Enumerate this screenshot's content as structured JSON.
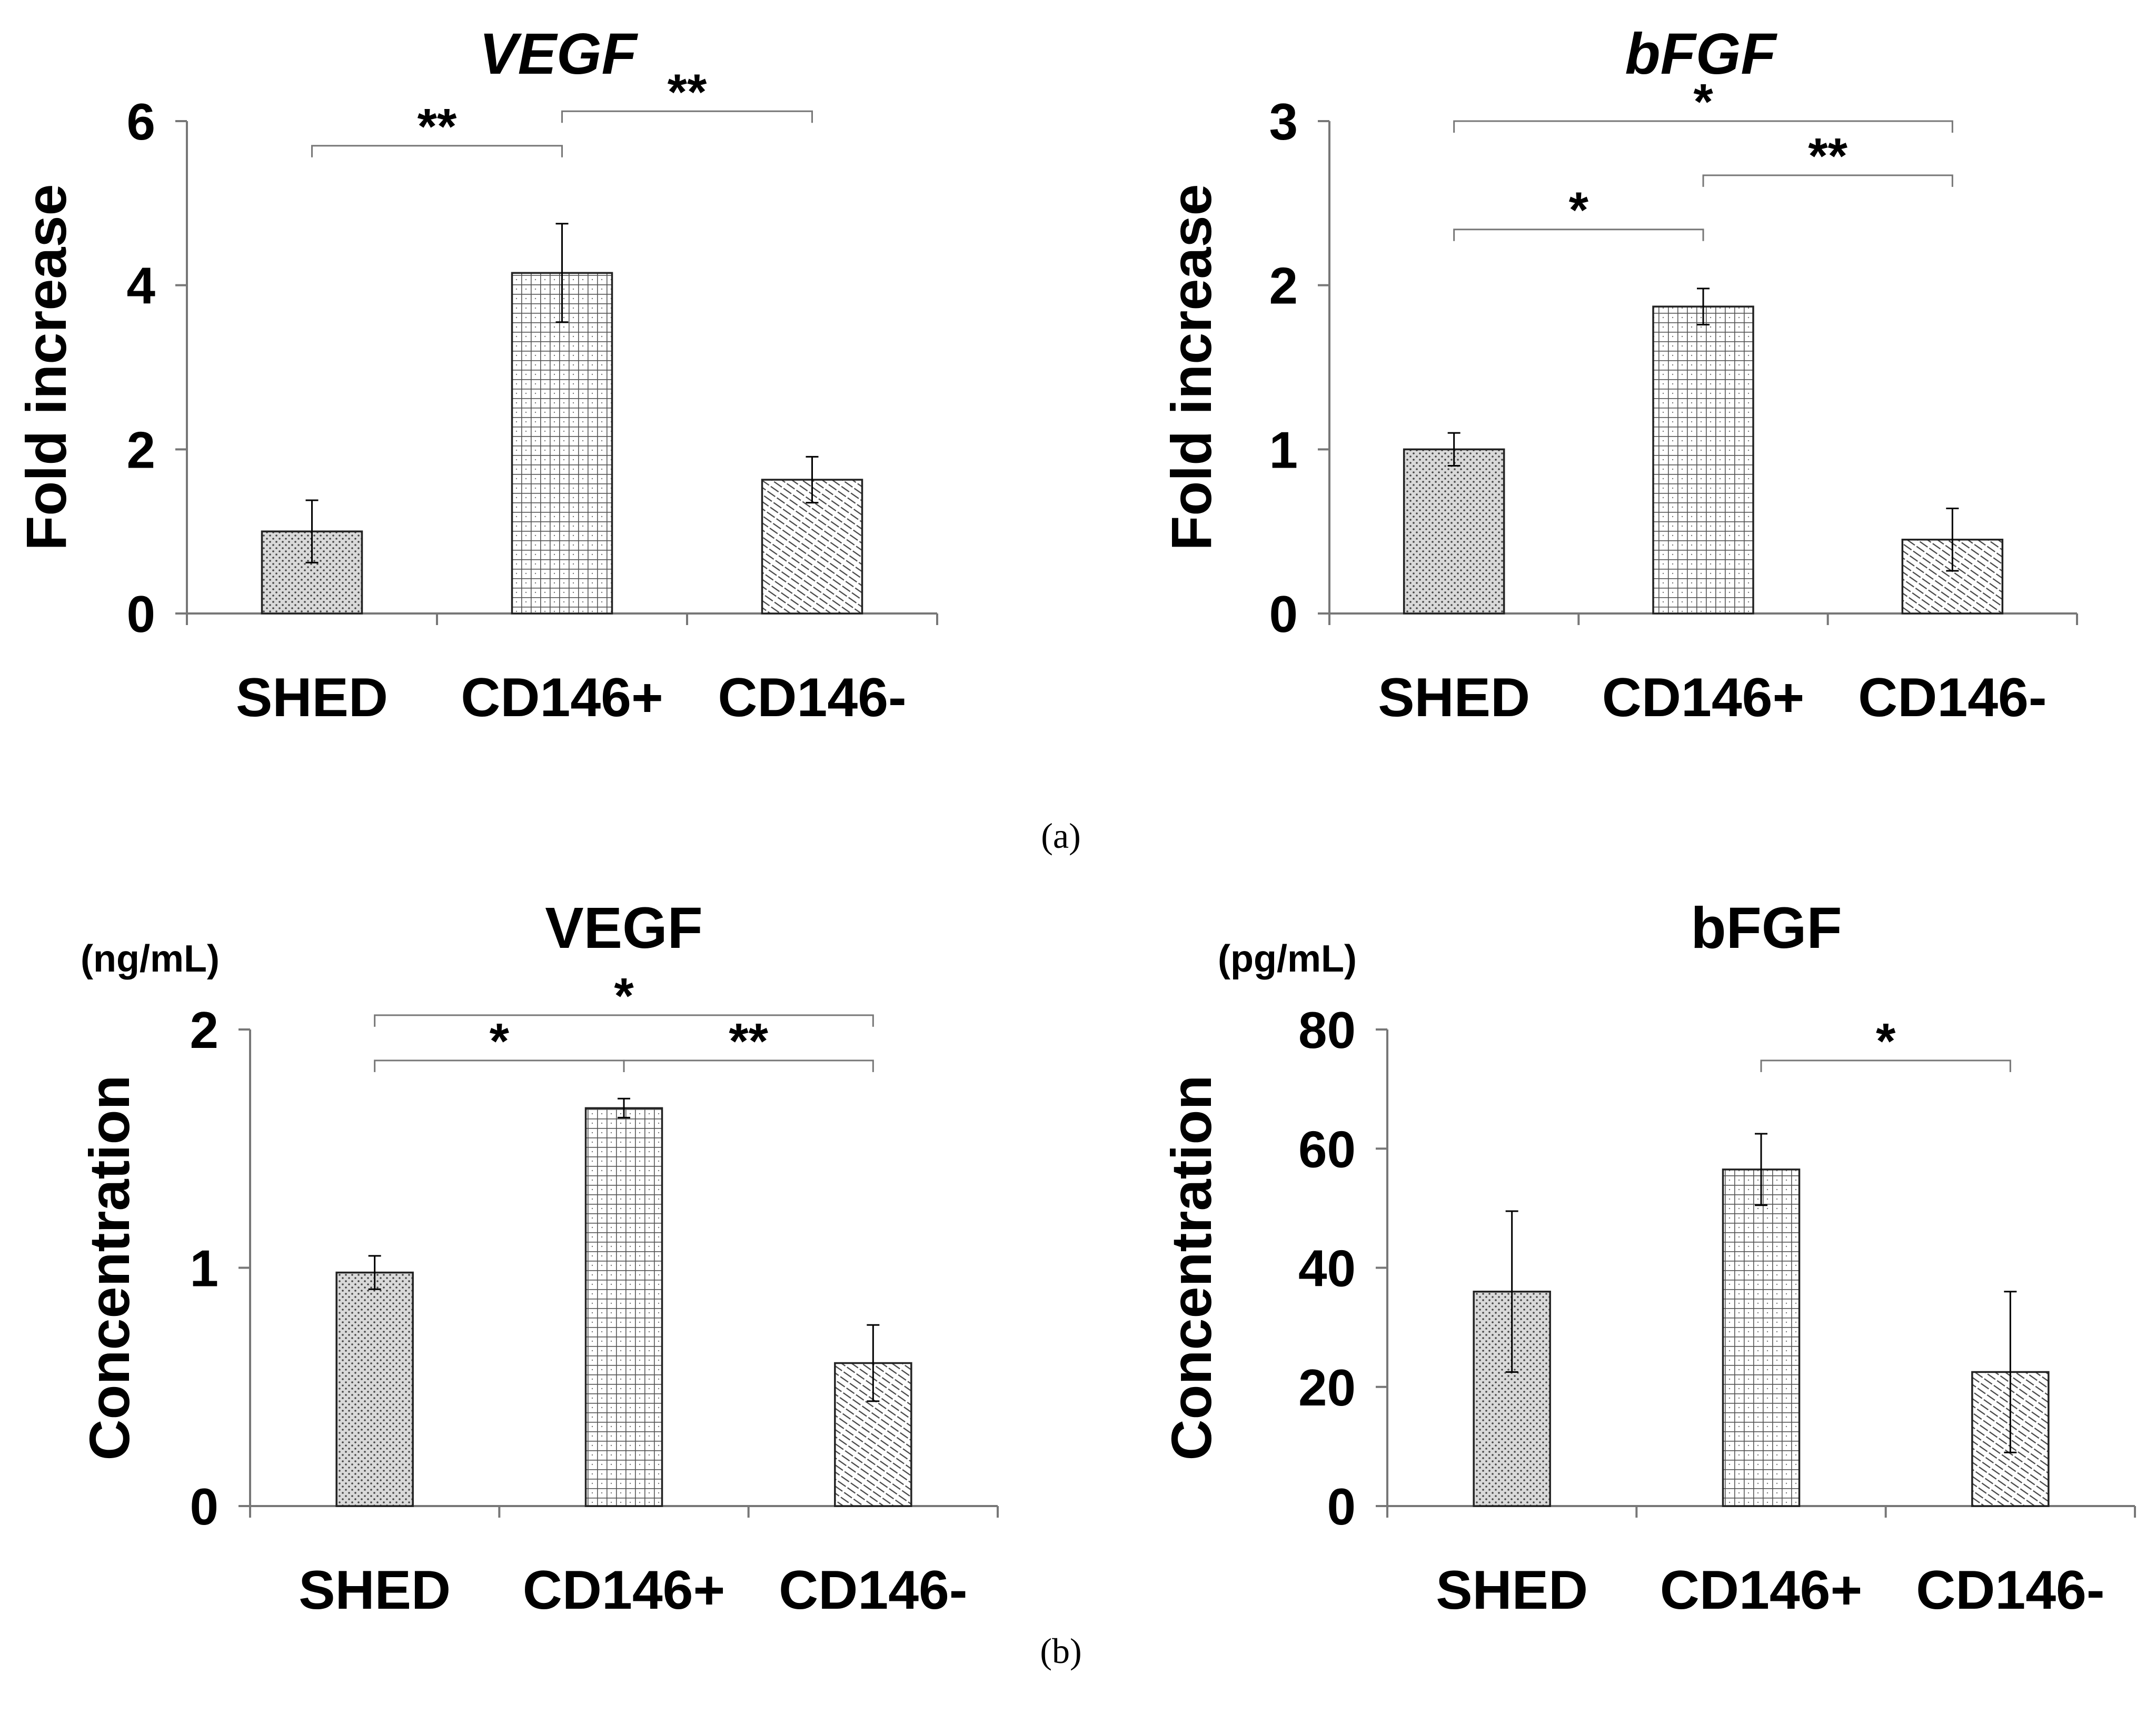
{
  "panel_labels": [
    "(a)",
    "(b)"
  ],
  "patterns": [
    "dots",
    "grid",
    "diag"
  ],
  "chart_data": [
    {
      "type": "bar",
      "title": "VEGF",
      "title_italic": true,
      "ylabel": "Fold increase",
      "unit": "",
      "xlabel": "",
      "categories": [
        "SHED",
        "CD146+",
        "CD146-"
      ],
      "values": [
        1.0,
        4.15,
        1.63
      ],
      "errors": [
        0.38,
        0.6,
        0.28
      ],
      "ylim": [
        0,
        6
      ],
      "yticks": [
        0,
        2,
        4,
        6
      ],
      "significance": [
        {
          "from": 0,
          "to": 1,
          "level": 0.95,
          "label": "**"
        },
        {
          "from": 1,
          "to": 2,
          "level": 1.02,
          "label": "**"
        }
      ]
    },
    {
      "type": "bar",
      "title": "bFGF",
      "title_italic": true,
      "ylabel": "Fold increase",
      "unit": "",
      "xlabel": "",
      "categories": [
        "SHED",
        "CD146+",
        "CD146-"
      ],
      "values": [
        1.0,
        1.87,
        0.45
      ],
      "errors": [
        0.1,
        0.11,
        0.19
      ],
      "ylim": [
        0,
        3
      ],
      "yticks": [
        0,
        1,
        2,
        3
      ],
      "significance": [
        {
          "from": 0,
          "to": 2,
          "level": 1.0,
          "label": "*"
        },
        {
          "from": 1,
          "to": 2,
          "level": 0.89,
          "label": "**"
        },
        {
          "from": 0,
          "to": 1,
          "level": 0.78,
          "label": "*"
        }
      ]
    },
    {
      "type": "bar",
      "title": "VEGF",
      "title_italic": false,
      "ylabel": "Concentration",
      "unit": "(ng/mL)",
      "xlabel": "",
      "categories": [
        "SHED",
        "CD146+",
        "CD146-"
      ],
      "values": [
        0.98,
        1.67,
        0.6
      ],
      "errors": [
        0.07,
        0.04,
        0.16
      ],
      "ylim": [
        0,
        2
      ],
      "yticks": [
        0,
        1,
        2
      ],
      "significance": [
        {
          "from": 0,
          "to": 2,
          "level": 1.03,
          "label": "*"
        },
        {
          "from": 0,
          "to": 1,
          "level": 0.935,
          "label": "*"
        },
        {
          "from": 1,
          "to": 2,
          "level": 0.935,
          "label": "**"
        }
      ]
    },
    {
      "type": "bar",
      "title": "bFGF",
      "title_italic": false,
      "ylabel": "Concentration",
      "unit": "(pg/mL)",
      "xlabel": "",
      "categories": [
        "SHED",
        "CD146+",
        "CD146-"
      ],
      "values": [
        36.0,
        56.5,
        22.5
      ],
      "errors": [
        13.5,
        6.0,
        13.5
      ],
      "ylim": [
        0,
        80
      ],
      "yticks": [
        0,
        20,
        40,
        60,
        80
      ],
      "significance": [
        {
          "from": 1,
          "to": 2,
          "level": 0.935,
          "label": "*"
        }
      ]
    }
  ]
}
